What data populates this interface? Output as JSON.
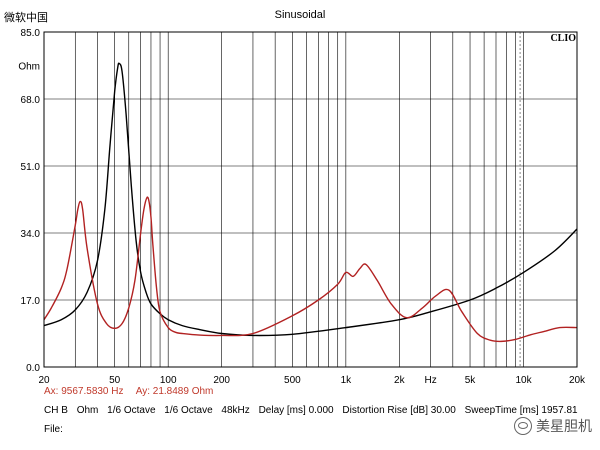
{
  "window": {
    "label": "微软中国",
    "title": "Sinusoidal"
  },
  "watermark": "美星胆机",
  "readout": {
    "ax": "Ax: 9567.5830 Hz",
    "ay": "Ay: 21.8489 Ohm"
  },
  "settings": {
    "channel": "CH B",
    "unit": "Ohm",
    "octave1": "1/6 Octave",
    "octave2": "1/6 Octave",
    "rate": "48kHz",
    "delay": "Delay [ms] 0.000",
    "distortion": "Distortion Rise [dB] 30.00",
    "sweep": "SweepTime [ms] 1957.81"
  },
  "file_label": "File:",
  "chart_data": {
    "type": "line",
    "title": "Sinusoidal",
    "brand_label": "CLIO",
    "x_scale": "log",
    "xlim": [
      20,
      20000
    ],
    "ylim": [
      0,
      85
    ],
    "grid": true,
    "x_tick_labels": [
      {
        "v": 20,
        "t": "20"
      },
      {
        "v": 50,
        "t": "50"
      },
      {
        "v": 100,
        "t": "100"
      },
      {
        "v": 200,
        "t": "200"
      },
      {
        "v": 500,
        "t": "500"
      },
      {
        "v": 1000,
        "t": "1k"
      },
      {
        "v": 2000,
        "t": "2k"
      },
      {
        "v": 3000,
        "t": "Hz"
      },
      {
        "v": 5000,
        "t": "5k"
      },
      {
        "v": 10000,
        "t": "10k"
      },
      {
        "v": 20000,
        "t": "20k"
      }
    ],
    "y_tick_labels": [
      {
        "v": 85,
        "t": "85.0"
      },
      {
        "v": 76.5,
        "t": "Ohm"
      },
      {
        "v": 68,
        "t": "68.0"
      },
      {
        "v": 51,
        "t": "51.0"
      },
      {
        "v": 34,
        "t": "34.0"
      },
      {
        "v": 17,
        "t": "17.0"
      },
      {
        "v": 0,
        "t": "0.0"
      }
    ],
    "y_gridlines": [
      17,
      34,
      51,
      68
    ],
    "cursor_x": 9567.583,
    "series": [
      {
        "color": "#000000",
        "x": [
          20,
          25,
          30,
          35,
          40,
          44,
          47,
          50,
          52,
          53,
          55,
          58,
          62,
          66,
          70,
          75,
          80,
          90,
          100,
          120,
          150,
          200,
          300,
          500,
          1000,
          2000,
          3000,
          5000,
          7000,
          10000,
          15000,
          20000
        ],
        "y": [
          10.5,
          12,
          14.5,
          19,
          27,
          40,
          56,
          70,
          76,
          77,
          75,
          64,
          46,
          32,
          24,
          19,
          16,
          13.5,
          12,
          10.5,
          9.5,
          8.5,
          8,
          8.3,
          10,
          12,
          14,
          17,
          20,
          24,
          29.5,
          35
        ]
      },
      {
        "color": "#b22222",
        "x": [
          20,
          22,
          25,
          27,
          30,
          31,
          32,
          33,
          35,
          40,
          45,
          50,
          55,
          60,
          65,
          70,
          73,
          76,
          78,
          80,
          82,
          86,
          90,
          100,
          110,
          120,
          150,
          200,
          300,
          500,
          700,
          900,
          1000,
          1100,
          1200,
          1300,
          1500,
          1800,
          2200,
          2700,
          3200,
          3800,
          4500,
          5500,
          6500,
          7500,
          9000,
          11000,
          13000,
          16000,
          20000
        ],
        "y": [
          12,
          15,
          20,
          25,
          36,
          40,
          42,
          40,
          30,
          16,
          11,
          9.8,
          11,
          15,
          22,
          34,
          40,
          43,
          42,
          38,
          31,
          20,
          14,
          10,
          8.8,
          8.5,
          8.1,
          8,
          8.5,
          13,
          17,
          21,
          24,
          23,
          25,
          26,
          22,
          16,
          12.5,
          15,
          18,
          19.5,
          14,
          8.5,
          6.8,
          6.5,
          7,
          8.2,
          9,
          10,
          10
        ]
      }
    ]
  }
}
